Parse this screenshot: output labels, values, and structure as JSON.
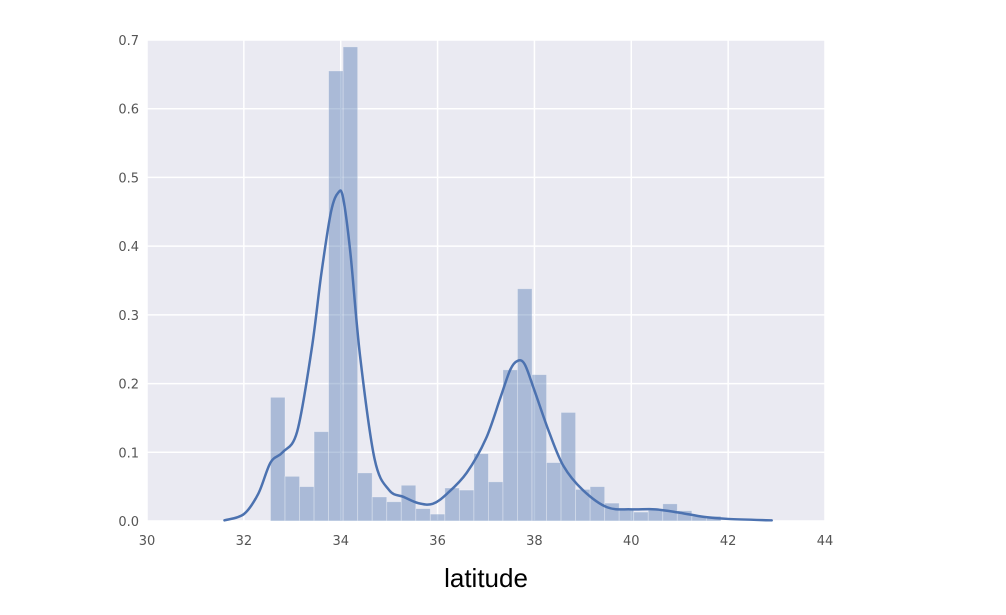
{
  "chart_data": {
    "type": "bar",
    "xlabel": "latitude",
    "ylabel": "",
    "title": "",
    "xlim": [
      30,
      44
    ],
    "ylim": [
      0,
      0.7
    ],
    "xticks": [
      30,
      32,
      34,
      36,
      38,
      40,
      42,
      44
    ],
    "yticks": [
      0.0,
      0.1,
      0.2,
      0.3,
      0.4,
      0.5,
      0.6,
      0.7
    ],
    "xtick_labels": [
      "30",
      "32",
      "34",
      "36",
      "38",
      "40",
      "42",
      "44"
    ],
    "ytick_labels": [
      "0.0",
      "0.1",
      "0.2",
      "0.3",
      "0.4",
      "0.5",
      "0.6",
      "0.7"
    ],
    "grid": true,
    "background": "#eaeaf2",
    "grid_color": "#ffffff",
    "bar_color": "#4c72b0",
    "bar_opacity": 0.4,
    "line_color": "#4c72b0",
    "histogram": {
      "bin_edges": [
        32.55,
        32.85,
        33.15,
        33.45,
        33.75,
        34.05,
        34.35,
        34.65,
        34.95,
        35.25,
        35.55,
        35.85,
        36.15,
        36.45,
        36.75,
        37.05,
        37.35,
        37.65,
        37.95,
        38.25,
        38.55,
        38.85,
        39.15,
        39.45,
        39.75,
        40.05,
        40.35,
        40.65,
        40.95,
        41.25,
        41.55,
        41.85
      ],
      "values": [
        0.18,
        0.065,
        0.05,
        0.13,
        0.655,
        0.69,
        0.07,
        0.035,
        0.028,
        0.052,
        0.018,
        0.01,
        0.048,
        0.045,
        0.098,
        0.057,
        0.22,
        0.338,
        0.213,
        0.085,
        0.158,
        0.046,
        0.05,
        0.026,
        0.018,
        0.013,
        0.016,
        0.025,
        0.015,
        0.007,
        0.007
      ]
    },
    "kde": {
      "x": [
        31.6,
        32.0,
        32.3,
        32.55,
        32.8,
        33.1,
        33.4,
        33.6,
        33.8,
        33.95,
        34.05,
        34.2,
        34.4,
        34.7,
        35.0,
        35.3,
        35.6,
        35.9,
        36.2,
        36.6,
        37.0,
        37.3,
        37.5,
        37.65,
        37.8,
        38.0,
        38.3,
        38.6,
        39.0,
        39.5,
        40.0,
        40.5,
        41.0,
        41.5,
        42.0,
        42.9
      ],
      "y": [
        0.001,
        0.01,
        0.04,
        0.085,
        0.1,
        0.13,
        0.25,
        0.36,
        0.45,
        0.478,
        0.47,
        0.39,
        0.24,
        0.09,
        0.045,
        0.035,
        0.026,
        0.025,
        0.04,
        0.07,
        0.12,
        0.18,
        0.22,
        0.233,
        0.228,
        0.19,
        0.13,
        0.08,
        0.045,
        0.02,
        0.017,
        0.017,
        0.012,
        0.006,
        0.003,
        0.001
      ]
    }
  }
}
